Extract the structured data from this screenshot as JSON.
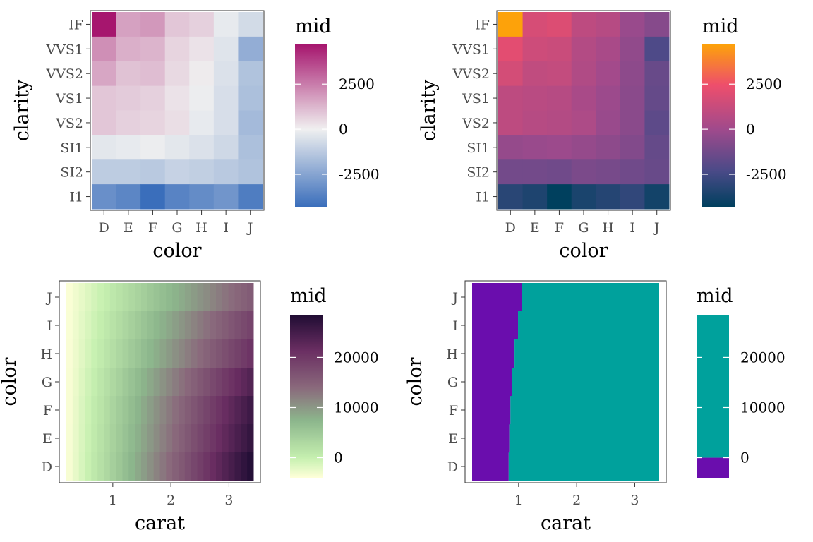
{
  "chart_data": [
    {
      "type": "heatmap",
      "xlabel": "color",
      "ylabel": "clarity",
      "legend_title": "mid",
      "x_categories": [
        "D",
        "E",
        "F",
        "G",
        "H",
        "I",
        "J"
      ],
      "y_categories": [
        "IF",
        "VVS1",
        "VVS2",
        "VS1",
        "VS2",
        "SI1",
        "SI2",
        "I1"
      ],
      "values": [
        [
          4700,
          1700,
          1900,
          900,
          700,
          -200,
          -700
        ],
        [
          2100,
          1400,
          1300,
          600,
          300,
          -400,
          -2200
        ],
        [
          1600,
          1000,
          1100,
          500,
          100,
          -500,
          -1500
        ],
        [
          900,
          800,
          700,
          300,
          -100,
          -600,
          -1600
        ],
        [
          900,
          700,
          600,
          400,
          -200,
          -600,
          -1800
        ],
        [
          -300,
          -200,
          -100,
          -300,
          -500,
          -800,
          -1600
        ],
        [
          -1200,
          -1200,
          -1300,
          -1000,
          -1100,
          -1300,
          -1500
        ],
        [
          -3200,
          -3500,
          -4300,
          -3600,
          -3300,
          -3000,
          -3800
        ]
      ],
      "scale": {
        "limits": [
          -4300,
          4700
        ],
        "breaks": [
          -2500,
          0,
          2500
        ],
        "colors": [
          "#3a6ebb",
          "#f0f0f0",
          "#a6166e"
        ],
        "stops": [
          0,
          0.478,
          1
        ]
      },
      "legend_labels": [
        "2500",
        "0",
        "-2500"
      ]
    },
    {
      "type": "heatmap",
      "xlabel": "color",
      "ylabel": "clarity",
      "legend_title": "mid",
      "x_categories": [
        "D",
        "E",
        "F",
        "G",
        "H",
        "I",
        "J"
      ],
      "y_categories": [
        "IF",
        "VVS1",
        "VVS2",
        "VS1",
        "VS2",
        "SI1",
        "SI2",
        "I1"
      ],
      "values": [
        [
          4700,
          1700,
          1900,
          900,
          700,
          -200,
          -700
        ],
        [
          2100,
          1400,
          1300,
          600,
          300,
          -400,
          -2200
        ],
        [
          1600,
          1000,
          1100,
          500,
          100,
          -500,
          -1500
        ],
        [
          900,
          800,
          700,
          300,
          -100,
          -600,
          -1600
        ],
        [
          900,
          700,
          600,
          400,
          -200,
          -600,
          -1800
        ],
        [
          -300,
          -200,
          -100,
          -300,
          -500,
          -800,
          -1600
        ],
        [
          -1200,
          -1200,
          -1300,
          -1000,
          -1100,
          -1300,
          -1500
        ],
        [
          -3200,
          -3500,
          -4300,
          -3600,
          -3300,
          -3000,
          -3800
        ]
      ],
      "scale": {
        "limits": [
          -4300,
          4700
        ],
        "breaks": [
          -2500,
          0,
          2500
        ],
        "colors": [
          "#00405e",
          "#4a4a88",
          "#a04a8c",
          "#ee4e6c",
          "#fda20a"
        ],
        "stops": [
          0,
          0.22,
          0.478,
          0.75,
          1
        ]
      },
      "legend_labels": [
        "2500",
        "0",
        "-2500"
      ]
    },
    {
      "type": "heatmap",
      "xlabel": "carat",
      "ylabel": "color",
      "legend_title": "mid",
      "x_ticks": [
        "1",
        "2",
        "3"
      ],
      "x_tick_values": [
        1,
        2,
        3
      ],
      "xlim": [
        0.2,
        3.42
      ],
      "y_categories": [
        "J",
        "I",
        "H",
        "G",
        "F",
        "E",
        "D"
      ],
      "row_max": [
        16000,
        19000,
        21000,
        24000,
        26000,
        27000,
        28500
      ],
      "scale": {
        "limits": [
          -4000,
          28500
        ],
        "breaks": [
          0,
          10000,
          20000
        ],
        "colors": [
          "#ffffd9",
          "#c6f0b0",
          "#8cb68c",
          "#8a6a7c",
          "#6a2e62",
          "#1f0c33"
        ],
        "stops": [
          0,
          0.12,
          0.35,
          0.55,
          0.78,
          1
        ]
      },
      "legend_labels": [
        "20000",
        "10000",
        "0"
      ]
    },
    {
      "type": "heatmap",
      "xlabel": "carat",
      "ylabel": "color",
      "legend_title": "mid",
      "x_ticks": [
        "1",
        "2",
        "3"
      ],
      "x_tick_values": [
        1,
        2,
        3
      ],
      "xlim": [
        0.2,
        3.42
      ],
      "y_categories": [
        "J",
        "I",
        "H",
        "G",
        "F",
        "E",
        "D"
      ],
      "threshold_carat": [
        1.06,
        0.99,
        0.93,
        0.89,
        0.86,
        0.84,
        0.83
      ],
      "scale": {
        "limits": [
          -4000,
          28500
        ],
        "breaks": [
          0,
          10000,
          20000
        ],
        "low_color": "#6a0dad",
        "high_color": "#00a19c",
        "threshold": 0
      },
      "legend_labels": [
        "20000",
        "10000",
        "0"
      ]
    }
  ]
}
